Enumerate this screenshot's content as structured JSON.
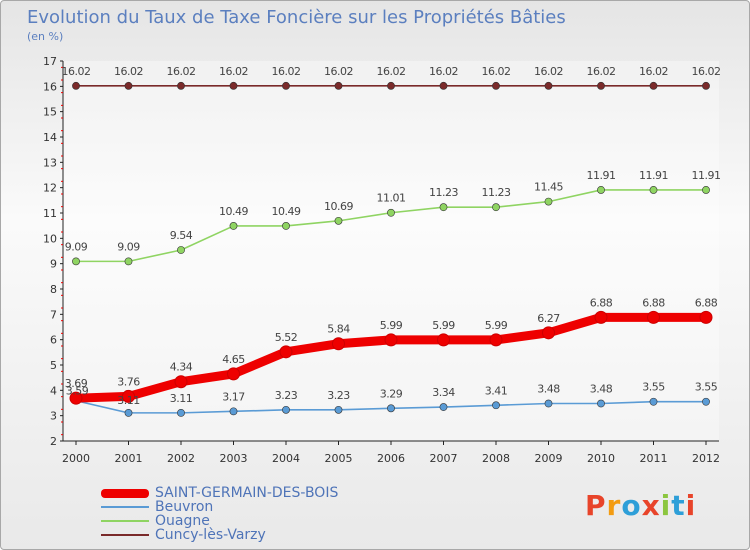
{
  "header": {
    "title": "Evolution du Taux de Taxe Foncière sur les Propriétés Bâties",
    "subtitle": "(en %)"
  },
  "logo": {
    "text": "Proxiti",
    "colors": [
      "#e8442a",
      "#f39c12",
      "#2e9fd8",
      "#e8442a",
      "#8cc63f",
      "#2e9fd8",
      "#e8442a"
    ]
  },
  "chart_data": {
    "type": "line",
    "title": "Evolution du Taux de Taxe Foncière sur les Propriétés Bâties",
    "ylabel": "(en %)",
    "xlabel": "",
    "x": [
      "2000",
      "2001",
      "2002",
      "2003",
      "2004",
      "2005",
      "2006",
      "2007",
      "2008",
      "2009",
      "2010",
      "2011",
      "2012"
    ],
    "ylim": [
      2,
      17
    ],
    "yticks": [
      2,
      3,
      4,
      5,
      6,
      7,
      8,
      9,
      10,
      11,
      12,
      13,
      14,
      15,
      16,
      17
    ],
    "grid": false,
    "legend_position": "bottom-left",
    "series": [
      {
        "name": "SAINT-GERMAIN-DES-BOIS",
        "color": "#ee0000",
        "values": [
          3.69,
          3.76,
          4.34,
          4.65,
          5.52,
          5.84,
          5.99,
          5.99,
          5.99,
          6.27,
          6.88,
          6.88,
          6.88
        ],
        "labels": [
          "3.69",
          "3.76",
          "4.34",
          "4.65",
          "5.52",
          "5.84",
          "5.99",
          "5.99",
          "5.99",
          "6.27",
          "6.88",
          "6.88",
          "6.88"
        ]
      },
      {
        "name": "Beuvron",
        "color": "#5a9bd5",
        "values": [
          3.59,
          3.11,
          3.11,
          3.17,
          3.23,
          3.23,
          3.29,
          3.34,
          3.41,
          3.48,
          3.48,
          3.55,
          3.55
        ],
        "labels": [
          "3.59",
          "3.11",
          "3.11",
          "3.17",
          "3.23",
          "3.23",
          "3.29",
          "3.34",
          "3.41",
          "3.48",
          "3.48",
          "3.55",
          "3.55"
        ]
      },
      {
        "name": "Ouagne",
        "color": "#8fd462",
        "values": [
          9.09,
          9.09,
          9.54,
          10.49,
          10.49,
          10.69,
          11.01,
          11.23,
          11.23,
          11.45,
          11.91,
          11.91,
          11.91
        ],
        "labels": [
          "9.09",
          "9.09",
          "9.54",
          "10.49",
          "10.49",
          "10.69",
          "11.01",
          "11.23",
          "11.23",
          "11.45",
          "11.91",
          "11.91",
          "11.91"
        ]
      },
      {
        "name": "Cuncy-lès-Varzy",
        "color": "#7a2a2a",
        "values": [
          16.02,
          16.02,
          16.02,
          16.02,
          16.02,
          16.02,
          16.02,
          16.02,
          16.02,
          16.02,
          16.02,
          16.02,
          16.02
        ],
        "labels": [
          "16.02",
          "16.02",
          "16.02",
          "16.02",
          "16.02",
          "16.02",
          "16.02",
          "16.02",
          "16.02",
          "16.02",
          "16.02",
          "16.02",
          "16.02"
        ]
      }
    ]
  }
}
